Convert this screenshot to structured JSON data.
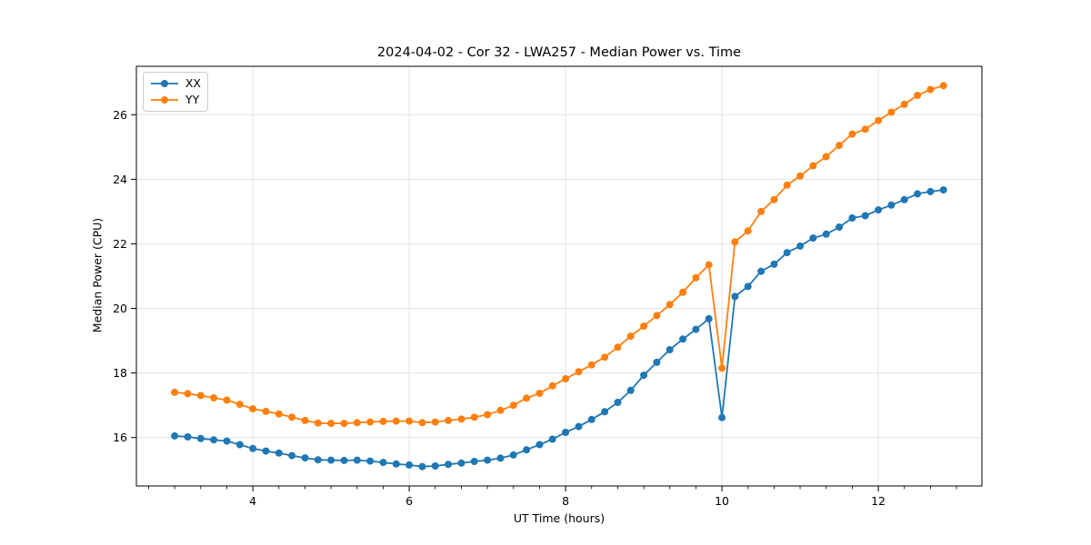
{
  "chart_data": {
    "type": "line",
    "title": "2024-04-02 - Cor 32 - LWA257 - Median Power vs. Time",
    "xlabel": "UT Time (hours)",
    "ylabel": "Median Power (CPU)",
    "xlim": [
      2.51,
      13.325
    ],
    "ylim": [
      14.5,
      27.5
    ],
    "xticks": [
      4,
      6,
      8,
      10,
      12
    ],
    "yticks": [
      16,
      18,
      20,
      22,
      24,
      26
    ],
    "minor_xtick_interval": 0.33333,
    "grid": true,
    "grid_color": "#e3e3e3",
    "legend_position": "upper-left",
    "x": [
      3.0,
      3.167,
      3.333,
      3.5,
      3.667,
      3.833,
      4.0,
      4.167,
      4.333,
      4.5,
      4.667,
      4.833,
      5.0,
      5.167,
      5.333,
      5.5,
      5.667,
      5.833,
      6.0,
      6.167,
      6.333,
      6.5,
      6.667,
      6.833,
      7.0,
      7.167,
      7.333,
      7.5,
      7.667,
      7.833,
      8.0,
      8.167,
      8.333,
      8.5,
      8.667,
      8.833,
      9.0,
      9.167,
      9.333,
      9.5,
      9.667,
      9.833,
      10.0,
      10.167,
      10.333,
      10.5,
      10.667,
      10.833,
      11.0,
      11.167,
      11.333,
      11.5,
      11.667,
      11.833,
      12.0,
      12.167,
      12.333,
      12.5,
      12.667,
      12.833
    ],
    "series": [
      {
        "name": "XX",
        "color": "#1f77b4",
        "marker": "circle",
        "values": [
          16.05,
          16.02,
          15.97,
          15.93,
          15.89,
          15.78,
          15.66,
          15.58,
          15.52,
          15.44,
          15.37,
          15.31,
          15.3,
          15.29,
          15.3,
          15.27,
          15.23,
          15.18,
          15.15,
          15.1,
          15.12,
          15.17,
          15.21,
          15.26,
          15.3,
          15.36,
          15.46,
          15.62,
          15.78,
          15.95,
          16.16,
          16.34,
          16.56,
          16.8,
          17.09,
          17.46,
          17.93,
          18.33,
          18.72,
          19.05,
          19.35,
          19.68,
          16.62,
          20.37,
          20.68,
          21.15,
          21.37,
          21.73,
          21.93,
          22.18,
          22.3,
          22.52,
          22.8,
          22.87,
          23.05,
          23.2,
          23.37,
          23.55,
          23.62,
          23.67
        ]
      },
      {
        "name": "YY",
        "color": "#ff7f0e",
        "marker": "circle",
        "values": [
          17.4,
          17.36,
          17.3,
          17.23,
          17.16,
          17.03,
          16.89,
          16.81,
          16.73,
          16.63,
          16.53,
          16.45,
          16.44,
          16.44,
          16.46,
          16.48,
          16.5,
          16.51,
          16.51,
          16.46,
          16.48,
          16.53,
          16.57,
          16.63,
          16.71,
          16.84,
          17.0,
          17.22,
          17.37,
          17.6,
          17.82,
          18.04,
          18.25,
          18.49,
          18.8,
          19.14,
          19.45,
          19.78,
          20.12,
          20.5,
          20.95,
          21.35,
          18.15,
          22.06,
          22.4,
          23.0,
          23.37,
          23.82,
          24.1,
          24.42,
          24.7,
          25.05,
          25.4,
          25.55,
          25.82,
          26.08,
          26.32,
          26.6,
          26.78,
          26.9
        ]
      }
    ]
  }
}
